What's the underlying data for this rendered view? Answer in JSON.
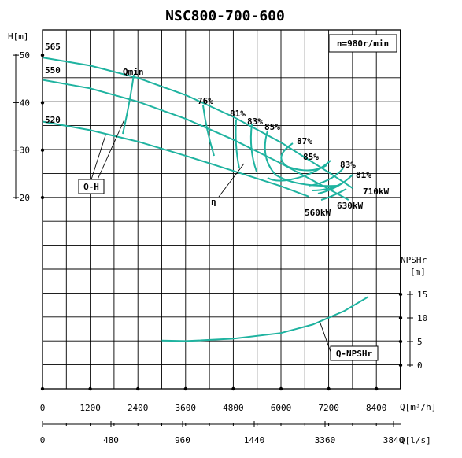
{
  "chart_data": {
    "type": "line",
    "title": "NSC800-700-600",
    "speed_label": "n=980r/min",
    "x_axis": {
      "label": "Q[m³/h]",
      "ticks": [
        0,
        1200,
        2400,
        3600,
        4800,
        6000,
        7200,
        8400
      ],
      "range": [
        0,
        9000
      ]
    },
    "x_axis_secondary": {
      "label": "Q[l/s]",
      "ticks": [
        "0",
        "480",
        "960",
        "1440",
        "3360",
        "3840"
      ]
    },
    "y_axis_head": {
      "label": "H[m]",
      "ticks": [
        20,
        30,
        40,
        50
      ],
      "range": [
        20,
        50
      ]
    },
    "y_axis_npsh": {
      "label": "NPSHr",
      "unit": "[m]",
      "ticks": [
        0,
        5,
        10,
        15
      ],
      "range": [
        0,
        15
      ]
    },
    "head_curves": [
      {
        "name": "565",
        "points": [
          [
            0,
            49.5
          ],
          [
            1200,
            47.8
          ],
          [
            2400,
            45.2
          ],
          [
            3600,
            41.6
          ],
          [
            4800,
            37.0
          ],
          [
            6000,
            31.6
          ],
          [
            7200,
            25.3
          ],
          [
            7800,
            22.0
          ]
        ]
      },
      {
        "name": "550",
        "points": [
          [
            0,
            44.8
          ],
          [
            1200,
            43.0
          ],
          [
            2400,
            40.2
          ],
          [
            3600,
            36.6
          ],
          [
            4800,
            32.2
          ],
          [
            6000,
            27.2
          ],
          [
            7200,
            21.8
          ],
          [
            7700,
            19.5
          ]
        ]
      },
      {
        "name": "520",
        "points": [
          [
            0,
            36.0
          ],
          [
            1200,
            34.2
          ],
          [
            2400,
            31.8
          ],
          [
            3600,
            28.8
          ],
          [
            4800,
            25.6
          ],
          [
            6000,
            22.4
          ],
          [
            6700,
            20.2
          ]
        ]
      }
    ],
    "npsh_curve": {
      "name": "Q-NPSHr",
      "points": [
        [
          3000,
          5.2
        ],
        [
          3600,
          5.1
        ],
        [
          4800,
          5.6
        ],
        [
          6000,
          6.8
        ],
        [
          6800,
          8.6
        ],
        [
          7600,
          11.5
        ],
        [
          8200,
          14.5
        ]
      ]
    },
    "efficiency_labels": [
      "76%",
      "81%",
      "83%",
      "85%",
      "87%",
      "85%",
      "83%",
      "81%"
    ],
    "power_labels": [
      "560kW",
      "630kW",
      "710kW"
    ],
    "curve_labels": [
      "Qmin",
      "Q-H",
      "η",
      "Q-NPSHr"
    ],
    "diameter_labels": [
      "565",
      "550",
      "520"
    ]
  }
}
